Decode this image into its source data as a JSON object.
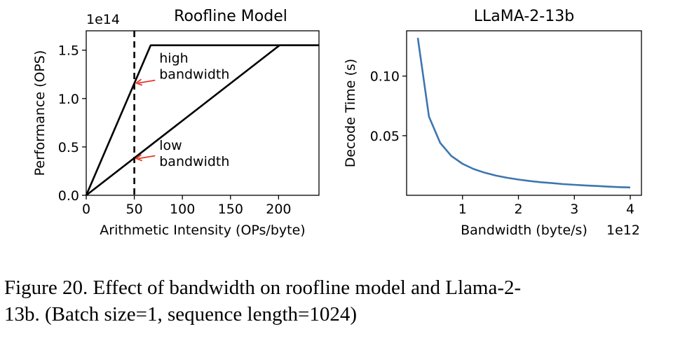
{
  "chart_data": [
    {
      "type": "line",
      "title": "Roofline Model",
      "xlabel": "Arithmetic Intensity (OPs/byte)",
      "ylabel": "Performance (OPS)",
      "y_scale_label": "1e14",
      "xlim": [
        0,
        242
      ],
      "ylim": [
        0,
        1.7
      ],
      "xticks": [
        0,
        50,
        100,
        150,
        200
      ],
      "yticks": [
        0.0,
        0.5,
        1.0,
        1.5
      ],
      "ytick_labels": [
        "0.0",
        "0.5",
        "1.0",
        "1.5"
      ],
      "grid": false,
      "series": [
        {
          "x": [
            0,
            67,
            242
          ],
          "y": [
            0,
            1.55,
            1.55
          ],
          "color": "#000000"
        },
        {
          "x": [
            0,
            201,
            242
          ],
          "y": [
            0,
            1.55,
            1.55
          ],
          "color": "#000000"
        }
      ],
      "vline": {
        "x": 50,
        "style": "dashed",
        "color": "#000000"
      },
      "annotations": [
        {
          "lines": [
            "high",
            "bandwidth"
          ],
          "x": 76,
          "y": 1.37,
          "arrow_to": [
            52,
            1.16
          ],
          "arrow_color": "#e8372c"
        },
        {
          "lines": [
            "low",
            "bandwidth"
          ],
          "x": 76,
          "y": 0.47,
          "arrow_to": [
            52,
            0.38
          ],
          "arrow_color": "#e8372c"
        }
      ]
    },
    {
      "type": "line",
      "title": "LLaMA-2-13b",
      "xlabel": "Bandwidth (byte/s)",
      "ylabel": "Decode Time (s)",
      "x_scale_label": "1e12",
      "xlim": [
        0.0,
        4.2
      ],
      "ylim": [
        0.0,
        0.138
      ],
      "xticks": [
        1,
        2,
        3,
        4
      ],
      "yticks": [
        0.05,
        0.1
      ],
      "ytick_labels": [
        "0.05",
        "0.10"
      ],
      "grid": false,
      "series": [
        {
          "color": "#3d76af",
          "x": [
            0.2,
            0.4,
            0.6,
            0.8,
            1.0,
            1.2,
            1.4,
            1.6,
            1.8,
            2.0,
            2.2,
            2.4,
            2.6,
            2.8,
            3.0,
            3.2,
            3.4,
            3.6,
            3.8,
            4.0
          ],
          "y": [
            0.132,
            0.066,
            0.044,
            0.033,
            0.0264,
            0.022,
            0.0189,
            0.0165,
            0.0147,
            0.0132,
            0.012,
            0.011,
            0.0102,
            0.0094,
            0.0088,
            0.0083,
            0.0078,
            0.0073,
            0.0069,
            0.0066
          ]
        }
      ]
    }
  ],
  "caption": {
    "line1": "Figure 20.  Effect of bandwidth on roofline model and Llama-2-",
    "line2": "13b. (Batch size=1, sequence length=1024)"
  }
}
